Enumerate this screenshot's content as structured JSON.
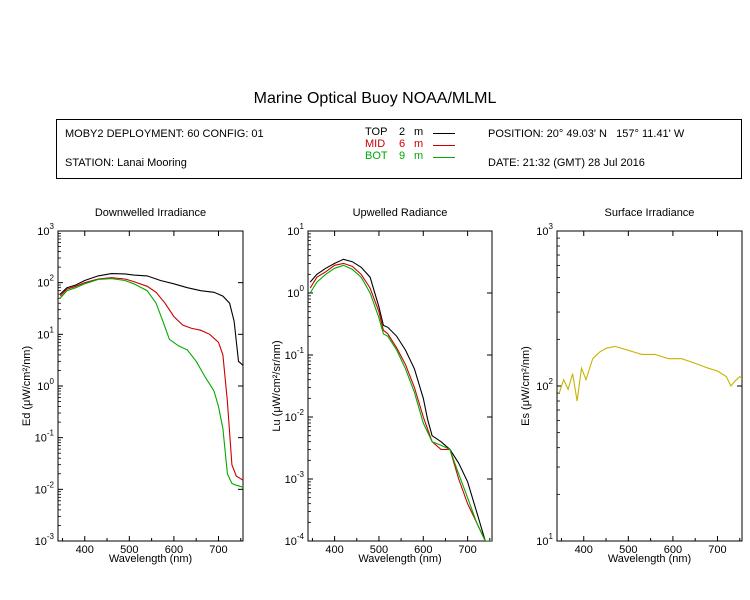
{
  "title": "Marine Optical Buoy NOAA/MLML",
  "info": {
    "deployment": "MOBY2 DEPLOYMENT: 60 CONFIG: 01",
    "station": "STATION: Lanai Mooring",
    "position": "POSITION: 20° 49.03' N   157° 11.41' W",
    "date": "DATE: 21:32 (GMT) 28 Jul 2016",
    "legend": [
      {
        "name": "TOP",
        "depth": "2",
        "unit": "m",
        "color": "#000000"
      },
      {
        "name": "MID",
        "depth": "6",
        "unit": "m",
        "color": "#cc0000"
      },
      {
        "name": "BOT",
        "depth": "9",
        "unit": "m",
        "color": "#00aa00"
      }
    ]
  },
  "chart_data": [
    {
      "type": "line",
      "title": "Downwelled Irradiance",
      "xlabel": "Wavelength (nm)",
      "ylabel": "Ed  (μW/cm²/nm)",
      "yscale": "log",
      "xlim": [
        340,
        755
      ],
      "ylim": [
        0.001,
        1000
      ],
      "xticks": [
        400,
        500,
        600,
        700
      ],
      "yticks": [
        {
          "v": 0.001,
          "b": "10",
          "e": "-3"
        },
        {
          "v": 0.01,
          "b": "10",
          "e": "-2"
        },
        {
          "v": 0.1,
          "b": "10",
          "e": "-1"
        },
        {
          "v": 1,
          "b": "10",
          "e": "0"
        },
        {
          "v": 10,
          "b": "10",
          "e": "1"
        },
        {
          "v": 100,
          "b": "10",
          "e": "2"
        },
        {
          "v": 1000,
          "b": "10",
          "e": "3"
        }
      ],
      "series": [
        {
          "name": "TOP",
          "color": "#000000",
          "x": [
            345,
            360,
            380,
            400,
            430,
            460,
            490,
            510,
            540,
            570,
            600,
            630,
            660,
            690,
            710,
            725,
            735,
            745,
            755
          ],
          "y": [
            60,
            80,
            90,
            110,
            135,
            150,
            148,
            140,
            135,
            110,
            95,
            80,
            70,
            65,
            55,
            40,
            18,
            3,
            2.5
          ]
        },
        {
          "name": "MID",
          "color": "#cc0000",
          "x": [
            345,
            360,
            380,
            400,
            430,
            460,
            490,
            510,
            540,
            560,
            580,
            600,
            620,
            640,
            660,
            680,
            700,
            710,
            720,
            730,
            740,
            755
          ],
          "y": [
            55,
            75,
            85,
            100,
            118,
            125,
            118,
            105,
            85,
            65,
            40,
            22,
            15,
            13,
            12,
            10,
            7,
            4,
            0.5,
            0.03,
            0.018,
            0.015
          ]
        },
        {
          "name": "BOT",
          "color": "#00aa00",
          "x": [
            345,
            360,
            380,
            400,
            430,
            460,
            490,
            510,
            540,
            560,
            575,
            590,
            610,
            630,
            650,
            670,
            690,
            700,
            710,
            720,
            730,
            740,
            755
          ],
          "y": [
            50,
            70,
            80,
            95,
            115,
            120,
            110,
            95,
            70,
            40,
            18,
            8,
            6,
            5,
            3,
            1.5,
            0.8,
            0.4,
            0.15,
            0.02,
            0.013,
            0.012,
            0.011
          ]
        }
      ]
    },
    {
      "type": "line",
      "title": "Upwelled Radiance",
      "xlabel": "Wavelength (nm)",
      "ylabel": "Lu  (μW/cm²/sr/nm)",
      "yscale": "log",
      "xlim": [
        340,
        755
      ],
      "ylim": [
        0.0001,
        10
      ],
      "xticks": [
        400,
        500,
        600,
        700
      ],
      "yticks": [
        {
          "v": 0.0001,
          "b": "10",
          "e": "-4"
        },
        {
          "v": 0.001,
          "b": "10",
          "e": "-3"
        },
        {
          "v": 0.01,
          "b": "10",
          "e": "-2"
        },
        {
          "v": 0.1,
          "b": "10",
          "e": "-1"
        },
        {
          "v": 1,
          "b": "10",
          "e": "0"
        },
        {
          "v": 10,
          "b": "10",
          "e": "1"
        }
      ],
      "series": [
        {
          "name": "TOP",
          "color": "#000000",
          "x": [
            345,
            360,
            380,
            400,
            420,
            440,
            460,
            480,
            500,
            510,
            520,
            540,
            560,
            580,
            600,
            610,
            620,
            640,
            660,
            680,
            700,
            720,
            740,
            755
          ],
          "y": [
            1.5,
            2.0,
            2.5,
            3.0,
            3.5,
            3.2,
            2.6,
            1.8,
            0.6,
            0.3,
            0.28,
            0.2,
            0.12,
            0.06,
            0.02,
            0.009,
            0.005,
            0.004,
            0.003,
            0.0018,
            0.0009,
            0.0003,
            0.0001,
            0.0001
          ]
        },
        {
          "name": "MID",
          "color": "#cc0000",
          "x": [
            345,
            360,
            380,
            400,
            420,
            440,
            460,
            480,
            500,
            510,
            520,
            540,
            560,
            580,
            600,
            620,
            640,
            660,
            680,
            700,
            720,
            740,
            755
          ],
          "y": [
            1.2,
            1.8,
            2.2,
            2.8,
            3.0,
            2.7,
            2.0,
            1.2,
            0.5,
            0.25,
            0.22,
            0.13,
            0.07,
            0.03,
            0.01,
            0.004,
            0.003,
            0.003,
            0.001,
            0.0004,
            0.0002,
            0.0001,
            0.0001
          ]
        },
        {
          "name": "BOT",
          "color": "#00aa00",
          "x": [
            345,
            360,
            380,
            400,
            420,
            440,
            460,
            480,
            500,
            510,
            520,
            540,
            560,
            580,
            600,
            620,
            640,
            660,
            680,
            700,
            720,
            740,
            755
          ],
          "y": [
            1.0,
            1.5,
            2.0,
            2.5,
            2.8,
            2.4,
            1.8,
            1.0,
            0.4,
            0.22,
            0.2,
            0.12,
            0.06,
            0.025,
            0.008,
            0.004,
            0.0035,
            0.003,
            0.0012,
            0.0005,
            0.0002,
            0.0001,
            0.0001
          ]
        }
      ]
    },
    {
      "type": "line",
      "title": "Surface Irradiance",
      "xlabel": "Wavelength (nm)",
      "ylabel": "Es  (μW/cm²/nm)",
      "yscale": "log",
      "xlim": [
        340,
        755
      ],
      "ylim": [
        10,
        1000
      ],
      "xticks": [
        400,
        500,
        600,
        700
      ],
      "yticks": [
        {
          "v": 10,
          "b": "10",
          "e": "1"
        },
        {
          "v": 100,
          "b": "10",
          "e": "2"
        },
        {
          "v": 1000,
          "b": "10",
          "e": "3"
        }
      ],
      "series": [
        {
          "name": "Es",
          "color": "#c8b400",
          "x": [
            345,
            355,
            365,
            375,
            385,
            395,
            405,
            420,
            435,
            450,
            470,
            500,
            530,
            560,
            590,
            620,
            650,
            680,
            700,
            720,
            730,
            740,
            750,
            755
          ],
          "y": [
            90,
            110,
            95,
            120,
            80,
            130,
            110,
            150,
            165,
            175,
            180,
            170,
            160,
            160,
            150,
            150,
            140,
            130,
            125,
            115,
            100,
            108,
            115,
            112
          ]
        }
      ]
    }
  ]
}
